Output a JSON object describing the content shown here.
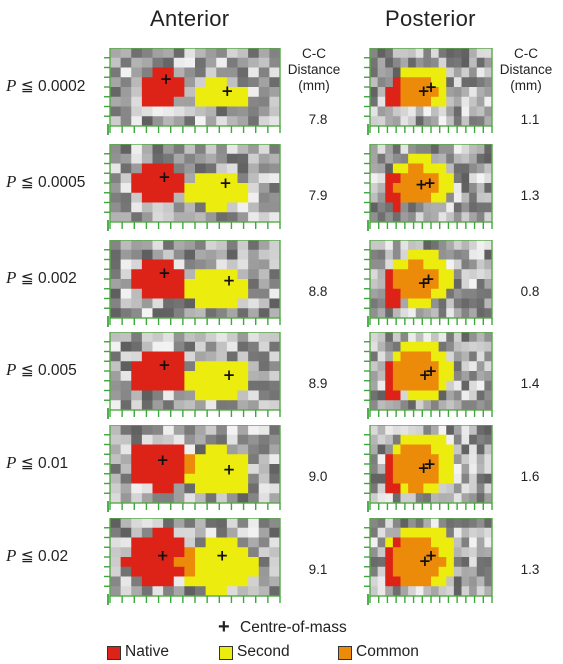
{
  "titles": {
    "anterior": "Anterior",
    "posterior": "Posterior"
  },
  "distance_header": {
    "line1": "C-C",
    "line2": "Distance",
    "line3": "(mm)"
  },
  "rows": [
    {
      "p_prefix": "P",
      "p_text": "≦ 0.0002",
      "anterior_distance": "7.8",
      "posterior_distance": "1.1"
    },
    {
      "p_prefix": "P",
      "p_text": "≦ 0.0005",
      "anterior_distance": "7.9",
      "posterior_distance": "1.3"
    },
    {
      "p_prefix": "P",
      "p_text": "≦ 0.002",
      "anterior_distance": "8.8",
      "posterior_distance": "0.8"
    },
    {
      "p_prefix": "P",
      "p_text": "≦ 0.005",
      "anterior_distance": "8.9",
      "posterior_distance": "1.4"
    },
    {
      "p_prefix": "P",
      "p_text": "≦ 0.01",
      "anterior_distance": "9.0",
      "posterior_distance": "1.6"
    },
    {
      "p_prefix": "P",
      "p_text": "≦ 0.02",
      "anterior_distance": "9.1",
      "posterior_distance": "1.3"
    }
  ],
  "legend": {
    "centre_of_mass": "Centre-of-mass",
    "native": "Native",
    "second": "Second",
    "common": "Common"
  },
  "colors": {
    "native": "#dd2218",
    "second": "#ecec0e",
    "common": "#ec8a0a",
    "frame": "#5aa84a",
    "tick": "#3aa83a"
  }
}
